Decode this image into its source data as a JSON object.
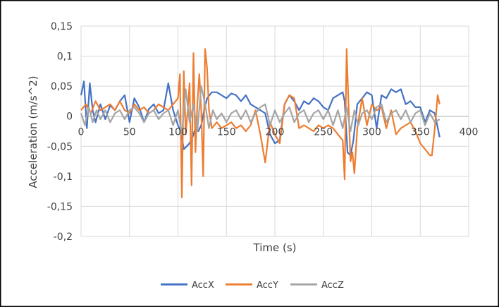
{
  "chart_data": {
    "type": "line",
    "title": "",
    "xlabel": "Time (s)",
    "ylabel": "Acceleration (m/s^2)",
    "xlim": [
      0,
      400
    ],
    "ylim": [
      -0.2,
      0.15
    ],
    "x_ticks": [
      "0",
      "50",
      "100",
      "150",
      "200",
      "250",
      "300",
      "350",
      "400"
    ],
    "y_ticks": [
      "0,15",
      "0,1",
      "0,05",
      "0",
      "-0,05",
      "-0,1",
      "-0,15",
      "-0,2"
    ],
    "grid": true,
    "legend_position": "bottom",
    "series": [
      {
        "name": "AccX",
        "color": "#4472C4",
        "x": [
          0,
          3,
          6,
          9,
          12,
          15,
          20,
          25,
          30,
          35,
          40,
          45,
          50,
          55,
          60,
          65,
          70,
          75,
          80,
          85,
          90,
          95,
          100,
          103,
          106,
          109,
          112,
          115,
          118,
          121,
          124,
          127,
          130,
          135,
          140,
          145,
          150,
          155,
          160,
          165,
          170,
          175,
          180,
          185,
          190,
          195,
          200,
          205,
          210,
          215,
          220,
          225,
          230,
          235,
          240,
          245,
          250,
          255,
          260,
          265,
          270,
          272,
          275,
          278,
          281,
          285,
          290,
          295,
          300,
          305,
          310,
          315,
          320,
          325,
          330,
          335,
          340,
          345,
          350,
          355,
          360,
          365,
          370
        ],
        "y": [
          0.035,
          0.058,
          -0.02,
          0.055,
          0.01,
          -0.01,
          0.02,
          -0.005,
          0.018,
          0.01,
          0.025,
          0.035,
          -0.01,
          0.03,
          0.015,
          -0.01,
          0.012,
          0.02,
          0.005,
          0.01,
          0.055,
          0.01,
          -0.015,
          -0.025,
          -0.055,
          -0.05,
          -0.045,
          -0.035,
          -0.02,
          -0.025,
          -0.015,
          0.01,
          0.03,
          0.04,
          0.04,
          0.035,
          0.03,
          0.038,
          0.035,
          0.025,
          0.035,
          0.02,
          0.015,
          0.01,
          0.005,
          -0.03,
          -0.045,
          -0.04,
          0.02,
          0.035,
          0.025,
          0.01,
          0.025,
          0.02,
          0.03,
          0.025,
          0.015,
          0.01,
          0.03,
          0.035,
          0.04,
          0.025,
          -0.06,
          -0.065,
          -0.04,
          0.02,
          0.03,
          0.04,
          0.035,
          -0.02,
          0.035,
          0.03,
          0.045,
          0.04,
          0.045,
          0.02,
          0.025,
          0.015,
          0.015,
          -0.01,
          0.01,
          0.005,
          -0.035
        ]
      },
      {
        "name": "AccY",
        "color": "#ED7D31",
        "x": [
          0,
          5,
          10,
          15,
          20,
          25,
          30,
          35,
          40,
          45,
          50,
          55,
          60,
          65,
          70,
          75,
          80,
          85,
          90,
          95,
          100,
          102,
          104,
          106,
          108,
          110,
          112,
          114,
          116,
          118,
          120,
          122,
          124,
          126,
          128,
          130,
          132,
          135,
          140,
          145,
          150,
          155,
          160,
          165,
          170,
          175,
          180,
          185,
          190,
          195,
          200,
          205,
          210,
          215,
          220,
          225,
          230,
          235,
          240,
          245,
          250,
          255,
          260,
          265,
          270,
          272,
          274,
          276,
          278,
          280,
          282,
          285,
          290,
          295,
          300,
          305,
          310,
          315,
          320,
          325,
          330,
          335,
          340,
          345,
          350,
          355,
          360,
          362,
          365,
          368,
          370
        ],
        "y": [
          0.01,
          0.02,
          0.005,
          0.025,
          0.01,
          0.015,
          0.02,
          0.01,
          0.025,
          0.01,
          0.005,
          0.02,
          0.01,
          0.015,
          0.005,
          0.01,
          0.02,
          0.015,
          0.01,
          0.02,
          0.03,
          0.07,
          -0.135,
          0.075,
          -0.03,
          0.01,
          0.055,
          -0.115,
          0.105,
          -0.06,
          0.02,
          0.07,
          0.01,
          -0.1,
          0.112,
          0.08,
          0.01,
          -0.02,
          -0.01,
          -0.02,
          -0.015,
          -0.01,
          -0.02,
          -0.015,
          -0.025,
          -0.015,
          0.01,
          -0.03,
          -0.077,
          -0.01,
          -0.03,
          -0.045,
          0.02,
          0.035,
          0.03,
          -0.02,
          -0.015,
          -0.02,
          -0.025,
          -0.015,
          -0.02,
          -0.015,
          -0.02,
          -0.03,
          -0.04,
          -0.105,
          0.112,
          0.02,
          -0.075,
          -0.06,
          -0.095,
          -0.02,
          0.03,
          -0.015,
          0.02,
          0.01,
          0.015,
          -0.02,
          0.01,
          -0.03,
          -0.02,
          -0.015,
          -0.01,
          -0.025,
          -0.045,
          -0.055,
          -0.065,
          -0.065,
          -0.02,
          0.035,
          0.02
        ]
      },
      {
        "name": "AccZ",
        "color": "#A5A5A5",
        "x": [
          0,
          4,
          8,
          12,
          16,
          20,
          25,
          30,
          35,
          40,
          45,
          50,
          55,
          60,
          65,
          70,
          75,
          80,
          85,
          90,
          95,
          100,
          104,
          108,
          112,
          116,
          120,
          124,
          128,
          132,
          136,
          140,
          145,
          150,
          155,
          160,
          165,
          170,
          175,
          180,
          185,
          190,
          195,
          200,
          205,
          210,
          215,
          220,
          225,
          230,
          235,
          240,
          245,
          250,
          255,
          260,
          265,
          270,
          274,
          278,
          282,
          286,
          290,
          295,
          300,
          305,
          310,
          315,
          320,
          325,
          330,
          335,
          340,
          345,
          350,
          355,
          360,
          365,
          370
        ],
        "y": [
          0.005,
          -0.015,
          0.015,
          -0.01,
          0.01,
          -0.005,
          0.01,
          -0.01,
          0.005,
          0.01,
          -0.005,
          0.01,
          0.015,
          0.005,
          -0.01,
          0.005,
          0.01,
          -0.005,
          0.005,
          0.01,
          -0.015,
          0.01,
          -0.03,
          0.045,
          -0.01,
          0.02,
          -0.025,
          0.05,
          0.02,
          -0.02,
          0.01,
          -0.005,
          0.005,
          -0.01,
          0.005,
          0.01,
          -0.005,
          0.01,
          -0.01,
          0.005,
          0.015,
          0.02,
          -0.015,
          0.01,
          -0.01,
          0.005,
          0.015,
          -0.01,
          0.005,
          0.01,
          -0.01,
          0.005,
          0.01,
          -0.005,
          0.01,
          -0.015,
          0.01,
          -0.02,
          0.015,
          -0.025,
          0.01,
          -0.015,
          0.005,
          0.01,
          -0.005,
          0.015,
          0.02,
          -0.01,
          0.005,
          0.01,
          -0.005,
          0.01,
          -0.01,
          0.005,
          0.01,
          -0.015,
          0.005,
          -0.01,
          -0.005
        ]
      }
    ]
  }
}
